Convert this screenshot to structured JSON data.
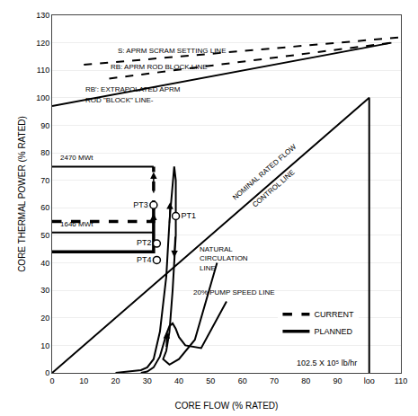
{
  "chart_data": {
    "type": "line",
    "xlabel": "CORE FLOW (% RATED)",
    "ylabel": "CORE THERMAL POWER (% RATED)",
    "xlim": [
      0,
      110
    ],
    "ylim": [
      0,
      130
    ],
    "xticks": [
      0,
      10,
      20,
      30,
      40,
      50,
      60,
      70,
      80,
      90,
      {
        "value": 100,
        "label": "loo"
      },
      110
    ],
    "yticks": [
      0,
      10,
      20,
      30,
      40,
      50,
      60,
      70,
      80,
      90,
      100,
      110,
      120,
      130
    ],
    "grid": "y",
    "legend": "lower right",
    "color": "black",
    "series": [
      {
        "x": [
          10,
          110
        ],
        "values": [
          112,
          122
        ],
        "line_style": "dashed"
      },
      {
        "x": [
          18,
          107
        ],
        "values": [
          107,
          120
        ],
        "line_style": "dashed"
      },
      {
        "x": [
          0,
          107
        ],
        "values": [
          97,
          120
        ],
        "line_style": "solid"
      },
      {
        "x": [
          0,
          100,
          100
        ],
        "values": [
          0,
          100,
          0
        ],
        "line_style": "solid",
        "labels": [
          {
            "text": "NOMINAL RATED FLOW",
            "x": 67,
            "y": 73
          },
          {
            "text": "CONTROL LINE",
            "x": 70,
            "y": 67
          }
        ]
      },
      {
        "x": [
          20,
          25,
          28,
          30,
          32,
          34,
          36,
          37,
          38,
          38.5,
          39,
          39,
          38,
          37,
          36,
          35,
          37,
          40,
          45,
          52
        ],
        "values": [
          0,
          0.5,
          1,
          2,
          5,
          15,
          35,
          55,
          70,
          75,
          70,
          50,
          30,
          15,
          8,
          5,
          3,
          5,
          12,
          40
        ],
        "line_style": "solid"
      },
      {
        "x": [
          28,
          30,
          32,
          34,
          36,
          37,
          38,
          39,
          40,
          42,
          47,
          55
        ],
        "values": [
          0,
          0.5,
          2,
          6,
          14,
          17,
          18,
          16,
          13,
          10,
          9,
          26
        ],
        "line_style": "solid"
      },
      {
        "x": [
          0,
          32
        ],
        "values": [
          75,
          75
        ],
        "line_style": "solid"
      },
      {
        "x": [
          0,
          32
        ],
        "values": [
          51,
          51
        ],
        "line_style": "solid"
      },
      {
        "name": "CURRENT",
        "x": [
          0,
          32,
          32
        ],
        "values": [
          55,
          55,
          75
        ],
        "line_style": "dashed"
      },
      {
        "name": "PLANNED",
        "x": [
          0,
          32,
          32
        ],
        "values": [
          44,
          44,
          60
        ],
        "line_style": "solid"
      },
      {
        "type": "scatter",
        "marker": "open circle",
        "x": [
          39,
          33,
          32,
          33
        ],
        "values": [
          57,
          47,
          61,
          41
        ],
        "labels": [
          "PT1",
          "PT2",
          "PT3",
          "PT4"
        ]
      }
    ],
    "annotations": [
      {
        "text": "S: APRM SCRAM SETTING LINE",
        "x": 20,
        "y": 115
      },
      {
        "text": "RB: APRM ROD BLOCK LINE",
        "x": 18,
        "y": 109
      },
      {
        "text": "RB': EXTRAPOLATED APRM",
        "x": 10,
        "y": 101
      },
      {
        "text": "ROD \"BLOCK\" LINE-",
        "x": 10,
        "y": 97
      },
      {
        "text": "NATURAL\nCIRCULATION\nLINE",
        "x": 46,
        "y": 36
      },
      {
        "text": "20% PUMP SPEED LINE",
        "x": 44,
        "y": 27
      },
      {
        "text": "2470 MWt",
        "x": 2,
        "y": 76
      },
      {
        "text": "1646 MWt",
        "x": 2,
        "y": 52
      }
    ],
    "arrows": [
      {
        "from": [
          37.0,
          54
        ],
        "to": [
          37.2,
          62
        ]
      },
      {
        "from": [
          38.8,
          50
        ],
        "to": [
          38.5,
          42
        ]
      },
      {
        "from": [
          36.0,
          9
        ],
        "to": [
          36.2,
          15
        ]
      },
      {
        "from": [
          32,
          65
        ],
        "to": [
          32,
          73
        ]
      },
      {
        "from": [
          32,
          50
        ],
        "to": [
          32,
          58
        ]
      }
    ],
    "note": "102.5 X 10⁵ lb/hr"
  }
}
